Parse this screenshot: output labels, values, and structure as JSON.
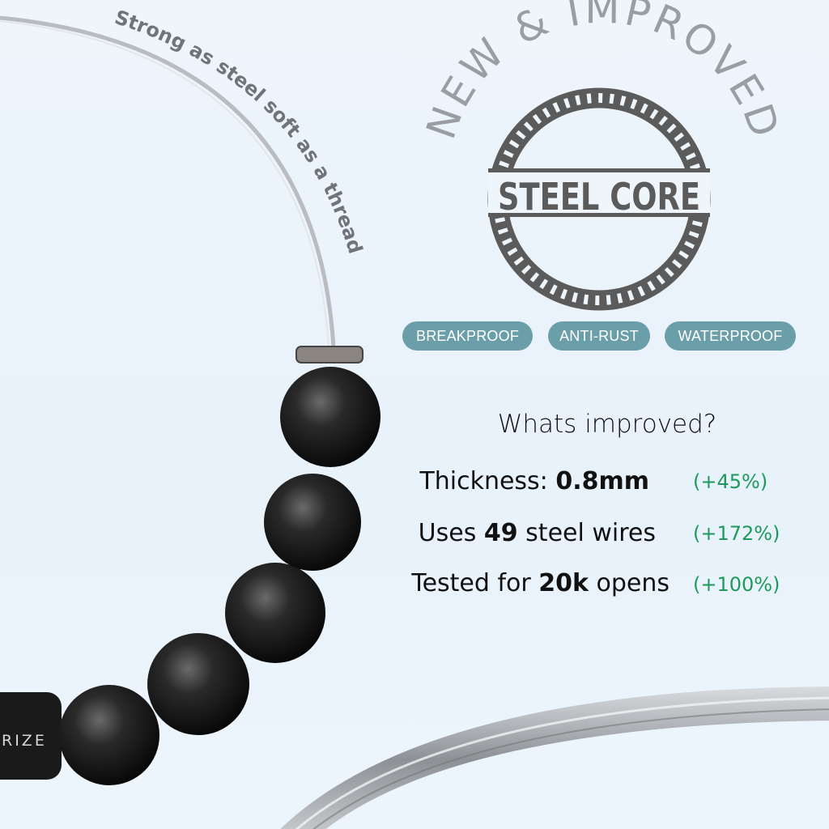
{
  "tagline": "Strong as steel soft as a thread",
  "badge": {
    "arc_text": "NEW & IMPROVED",
    "center_text": "STEEL CORE",
    "color": "#5b5b5b",
    "arc_color": "#9a9ea3"
  },
  "features": [
    "BREAKPROOF",
    "ANTI-RUST",
    "WATERPROOF"
  ],
  "feature_color": "#6a9ea8",
  "improvements": {
    "heading": "Whats improved?",
    "rows": [
      {
        "pre": "Thickness: ",
        "bold": "0.8mm",
        "post": "",
        "gain": "(+45%)"
      },
      {
        "pre": "Uses ",
        "bold": "49",
        "post": " steel wires",
        "gain": "(+172%)"
      },
      {
        "pre": "Tested for ",
        "bold": "20k",
        "post": " opens",
        "gain": "(+100%)"
      }
    ],
    "gain_color": "#1e9a5a"
  },
  "clasp_text": "RIZE"
}
